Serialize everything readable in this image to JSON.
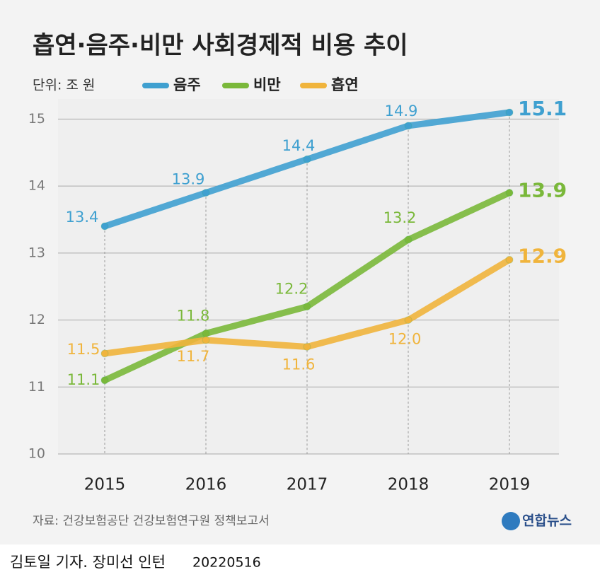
{
  "chart_data": {
    "type": "line",
    "title": "흡연·음주·비만 사회경제적 비용 추이",
    "unit_label": "단위: 조 원",
    "categories": [
      "2015",
      "2016",
      "2017",
      "2018",
      "2019"
    ],
    "series": [
      {
        "name": "음주",
        "color": "#3fa0d0",
        "values": [
          13.4,
          13.9,
          14.4,
          14.9,
          15.1
        ]
      },
      {
        "name": "비만",
        "color": "#7ab83a",
        "values": [
          11.1,
          11.8,
          12.2,
          13.2,
          13.9
        ]
      },
      {
        "name": "흡연",
        "color": "#f0b43c",
        "values": [
          11.5,
          11.7,
          11.6,
          12.0,
          12.9
        ],
        "value_labels": [
          "11.5",
          "11.7",
          "11.6",
          "12.0",
          "12.9"
        ]
      }
    ],
    "ylim": [
      10,
      15.3
    ],
    "yticks": [
      10,
      11,
      12,
      13,
      14,
      15
    ],
    "grid": true,
    "source": "자료: 건강보험공단 건강보험연구원 정책보고서",
    "logo": "연합뉴스",
    "credit": "김토일 기자. 장미선 인턴",
    "date": "20220516"
  }
}
